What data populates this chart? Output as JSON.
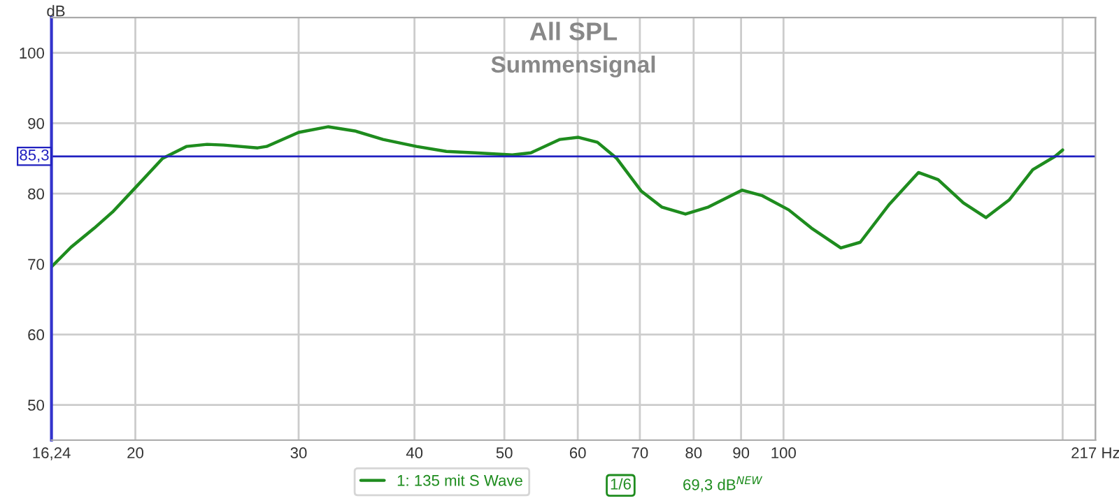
{
  "chart_data": {
    "type": "line",
    "title": "All SPL",
    "subtitle": "Summensignal",
    "ylabel": "dB",
    "log": "x",
    "grid": true,
    "legend": "bottom",
    "marker": "none",
    "line_style": "solid",
    "xlim": [
      16.24,
      217
    ],
    "xticks": [
      {
        "value": 16.24,
        "label": "16,24"
      },
      20,
      30,
      40,
      50,
      60,
      70,
      80,
      90,
      100,
      {
        "value": 200,
        "label": null
      },
      {
        "value": 217,
        "label": "217 Hz"
      }
    ],
    "ylim": [
      45,
      105
    ],
    "yticks": [
      50,
      60,
      70,
      80,
      90,
      100
    ],
    "ref_lines": [
      {
        "axis": "y",
        "value": 85.3,
        "label": "85,3",
        "color": "#2020c0",
        "line_style": "solid"
      }
    ],
    "annotations": [
      "1/6",
      "69,3 dB$^{NEW}$"
    ],
    "series": [
      {
        "name": "1: 135 mit S Wave",
        "color": "#1e8c1e",
        "x": [
          16.24,
          17.05,
          18.06,
          18.9,
          20.05,
          21.4,
          22.7,
          23.9,
          24.9,
          27.1,
          27.7,
          30.0,
          32.3,
          34.5,
          37.0,
          40.2,
          43.3,
          46.5,
          51.0,
          53.4,
          57.4,
          60.1,
          63.0,
          66.1,
          70.2,
          73.9,
          78.4,
          83.0,
          90.2,
          94.9,
          101.3,
          107.2,
          115.3,
          121.0,
          129.9,
          139.8,
          146.8,
          156.3,
          165.3,
          175.1,
          185.7,
          196.3,
          200
        ],
        "values": [
          69.6,
          72.4,
          75.1,
          77.4,
          81.0,
          85.0,
          86.7,
          87.0,
          86.9,
          86.5,
          86.7,
          88.7,
          89.5,
          88.9,
          87.7,
          86.7,
          86.0,
          85.8,
          85.5,
          85.8,
          87.7,
          88.0,
          87.3,
          85.0,
          80.4,
          78.1,
          77.1,
          78.1,
          80.5,
          79.7,
          77.7,
          75.1,
          72.3,
          73.1,
          78.4,
          83.0,
          82.0,
          78.7,
          76.6,
          79.1,
          83.4,
          85.3,
          86.2
        ]
      }
    ]
  }
}
